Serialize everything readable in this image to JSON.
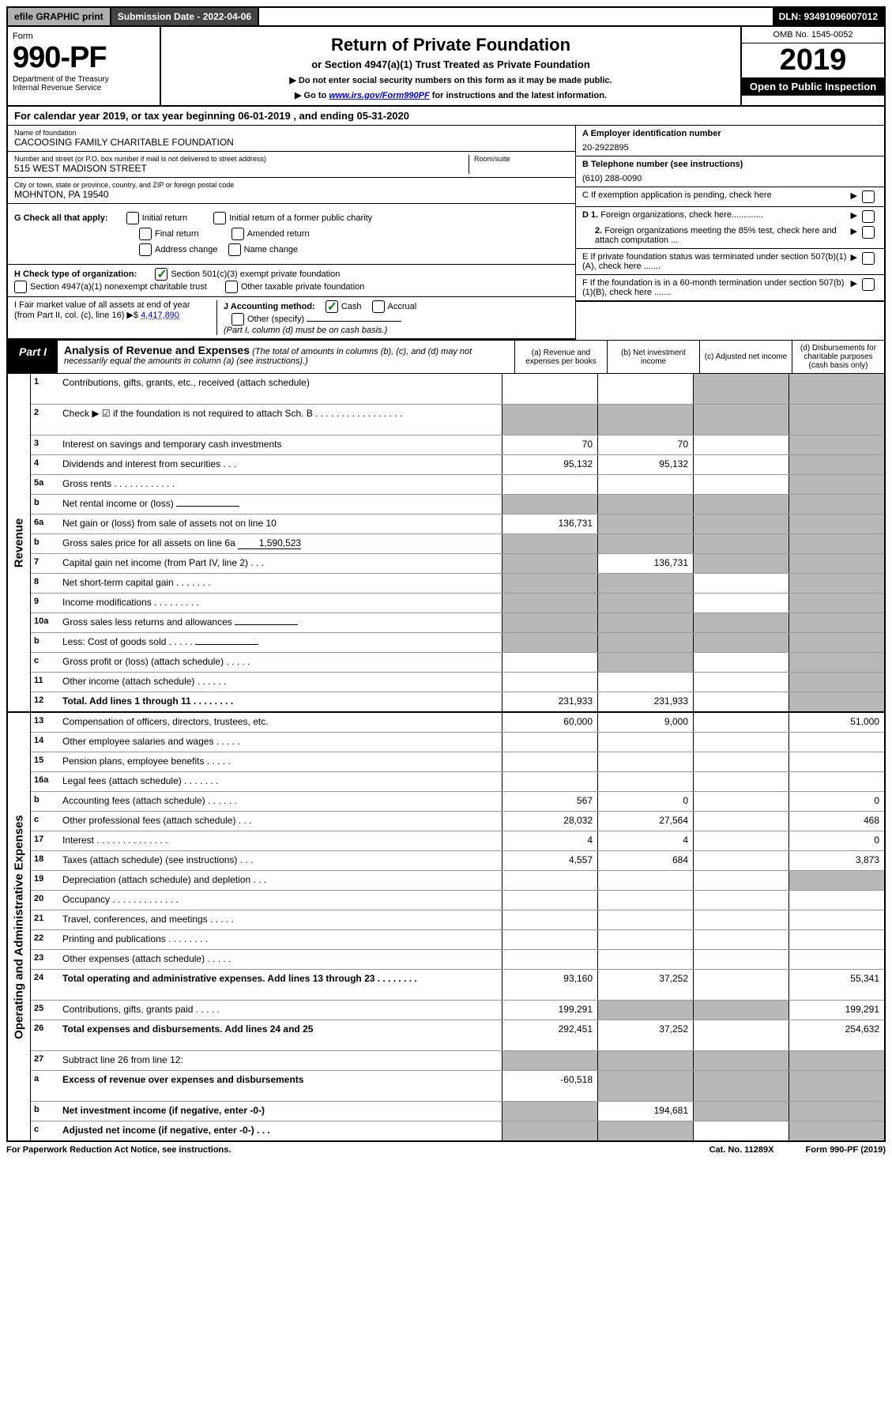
{
  "topbar": {
    "efile": "efile GRAPHIC print",
    "submission_label": "Submission Date - 2022-04-06",
    "dln": "DLN: 93491096007012"
  },
  "header": {
    "form_label": "Form",
    "form_number": "990-PF",
    "dept": "Department of the Treasury\nInternal Revenue Service",
    "title": "Return of Private Foundation",
    "subtitle": "or Section 4947(a)(1) Trust Treated as Private Foundation",
    "instr1": "▶ Do not enter social security numbers on this form as it may be made public.",
    "instr2_pre": "▶ Go to ",
    "instr2_link": "www.irs.gov/Form990PF",
    "instr2_post": " for instructions and the latest information.",
    "omb": "OMB No. 1545-0052",
    "year": "2019",
    "open": "Open to Public Inspection"
  },
  "calyear": "For calendar year 2019, or tax year beginning 06-01-2019           , and ending 05-31-2020",
  "foundation": {
    "name_label": "Name of foundation",
    "name": "CACOOSING FAMILY CHARITABLE FOUNDATION",
    "addr_label": "Number and street (or P.O. box number if mail is not delivered to street address)",
    "addr": "515 WEST MADISON STREET",
    "room_label": "Room/suite",
    "city_label": "City or town, state or province, country, and ZIP or foreign postal code",
    "city": "MOHNTON, PA  19540"
  },
  "right_info": {
    "a_label": "A Employer identification number",
    "a_val": "20-2922895",
    "b_label": "B Telephone number (see instructions)",
    "b_val": "(610) 288-0090",
    "c_label": "C If exemption application is pending, check here",
    "d1_label": "D 1. Foreign organizations, check here.............",
    "d2_label": "2. Foreign organizations meeting the 85% test, check here and attach computation ...",
    "e_label": "E  If private foundation status was terminated under section 507(b)(1)(A), check here .......",
    "f_label": "F  If the foundation is in a 60-month termination under section 507(b)(1)(B), check here ......."
  },
  "g": {
    "label": "G Check all that apply:",
    "opts": [
      "Initial return",
      "Final return",
      "Address change",
      "Initial return of a former public charity",
      "Amended return",
      "Name change"
    ]
  },
  "h": {
    "label": "H Check type of organization:",
    "opt1": "Section 501(c)(3) exempt private foundation",
    "opt2": "Section 4947(a)(1) nonexempt charitable trust",
    "opt3": "Other taxable private foundation"
  },
  "i": {
    "label": "I Fair market value of all assets at end of year (from Part II, col. (c), line 16) ▶$",
    "val": "4,417,890"
  },
  "j": {
    "label": "J Accounting method:",
    "cash": "Cash",
    "accrual": "Accrual",
    "other": "Other (specify)",
    "note": "(Part I, column (d) must be on cash basis.)"
  },
  "part1": {
    "tab": "Part I",
    "title": "Analysis of Revenue and Expenses",
    "title_note": "(The total of amounts in columns (b), (c), and (d) may not necessarily equal the amounts in column (a) (see instructions).)",
    "col_a": "(a)  Revenue and expenses per books",
    "col_b": "(b)  Net investment income",
    "col_c": "(c)  Adjusted net income",
    "col_d": "(d)  Disbursements for charitable purposes (cash basis only)"
  },
  "sections": {
    "revenue": "Revenue",
    "opex": "Operating and Administrative Expenses"
  },
  "rows": [
    {
      "n": "1",
      "desc": "Contributions, gifts, grants, etc., received (attach schedule)",
      "a": "",
      "b": "",
      "c": "s",
      "d": "s",
      "tall": true
    },
    {
      "n": "2",
      "desc": "Check ▶ ☑ if the foundation is not required to attach Sch. B  . . . . . . . . . . . . . . . . .",
      "nocols": true,
      "tall": true
    },
    {
      "n": "3",
      "desc": "Interest on savings and temporary cash investments",
      "a": "70",
      "b": "70",
      "c": "",
      "d": "s"
    },
    {
      "n": "4",
      "desc": "Dividends and interest from securities  . . .",
      "a": "95,132",
      "b": "95,132",
      "c": "",
      "d": "s"
    },
    {
      "n": "5a",
      "desc": "Gross rents  . . . . . . . . . . . .",
      "a": "",
      "b": "",
      "c": "",
      "d": "s"
    },
    {
      "n": "b",
      "desc": "Net rental income or (loss)  ",
      "inline": "",
      "nocols": true
    },
    {
      "n": "6a",
      "desc": "Net gain or (loss) from sale of assets not on line 10",
      "a": "136,731",
      "b": "s",
      "c": "s",
      "d": "s"
    },
    {
      "n": "b",
      "desc": "Gross sales price for all assets on line 6a",
      "inline": "1,590,523",
      "nocols": true
    },
    {
      "n": "7",
      "desc": "Capital gain net income (from Part IV, line 2)  . . .",
      "a": "s",
      "b": "136,731",
      "c": "s",
      "d": "s"
    },
    {
      "n": "8",
      "desc": "Net short-term capital gain  . . . . . . .",
      "a": "s",
      "b": "s",
      "c": "",
      "d": "s"
    },
    {
      "n": "9",
      "desc": "Income modifications  . . . . . . . . .",
      "a": "s",
      "b": "s",
      "c": "",
      "d": "s"
    },
    {
      "n": "10a",
      "desc": "Gross sales less returns and allowances",
      "inline": "",
      "nocols": true
    },
    {
      "n": "b",
      "desc": "Less: Cost of goods sold  . . . . .",
      "inline": "",
      "nocols": true
    },
    {
      "n": "c",
      "desc": "Gross profit or (loss) (attach schedule)  . . . . .",
      "a": "",
      "b": "s",
      "c": "",
      "d": "s"
    },
    {
      "n": "11",
      "desc": "Other income (attach schedule)  . . . . . .",
      "a": "",
      "b": "",
      "c": "",
      "d": "s"
    },
    {
      "n": "12",
      "desc": "Total. Add lines 1 through 11  . . . . . . . .",
      "bold": true,
      "a": "231,933",
      "b": "231,933",
      "c": "",
      "d": "s"
    }
  ],
  "opex_rows": [
    {
      "n": "13",
      "desc": "Compensation of officers, directors, trustees, etc.",
      "a": "60,000",
      "b": "9,000",
      "c": "",
      "d": "51,000"
    },
    {
      "n": "14",
      "desc": "Other employee salaries and wages  . . . . .",
      "a": "",
      "b": "",
      "c": "",
      "d": ""
    },
    {
      "n": "15",
      "desc": "Pension plans, employee benefits  . . . . .",
      "a": "",
      "b": "",
      "c": "",
      "d": ""
    },
    {
      "n": "16a",
      "desc": "Legal fees (attach schedule)  . . . . . . .",
      "a": "",
      "b": "",
      "c": "",
      "d": ""
    },
    {
      "n": "b",
      "desc": "Accounting fees (attach schedule)  . . . . . .",
      "a": "567",
      "b": "0",
      "c": "",
      "d": "0"
    },
    {
      "n": "c",
      "desc": "Other professional fees (attach schedule)  . . .",
      "a": "28,032",
      "b": "27,564",
      "c": "",
      "d": "468"
    },
    {
      "n": "17",
      "desc": "Interest  . . . . . . . . . . . . . .",
      "a": "4",
      "b": "4",
      "c": "",
      "d": "0"
    },
    {
      "n": "18",
      "desc": "Taxes (attach schedule) (see instructions)  . . .",
      "a": "4,557",
      "b": "684",
      "c": "",
      "d": "3,873"
    },
    {
      "n": "19",
      "desc": "Depreciation (attach schedule) and depletion  . . .",
      "a": "",
      "b": "",
      "c": "",
      "d": "s"
    },
    {
      "n": "20",
      "desc": "Occupancy  . . . . . . . . . . . . .",
      "a": "",
      "b": "",
      "c": "",
      "d": ""
    },
    {
      "n": "21",
      "desc": "Travel, conferences, and meetings  . . . . .",
      "a": "",
      "b": "",
      "c": "",
      "d": ""
    },
    {
      "n": "22",
      "desc": "Printing and publications  . . . . . . . .",
      "a": "",
      "b": "",
      "c": "",
      "d": ""
    },
    {
      "n": "23",
      "desc": "Other expenses (attach schedule)  . . . . .",
      "a": "",
      "b": "",
      "c": "",
      "d": ""
    },
    {
      "n": "24",
      "desc": "Total operating and administrative expenses. Add lines 13 through 23  . . . . . . . .",
      "bold": true,
      "a": "93,160",
      "b": "37,252",
      "c": "",
      "d": "55,341",
      "tall": true
    },
    {
      "n": "25",
      "desc": "Contributions, gifts, grants paid  . . . . .",
      "a": "199,291",
      "b": "s",
      "c": "s",
      "d": "199,291"
    },
    {
      "n": "26",
      "desc": "Total expenses and disbursements. Add lines 24 and 25",
      "bold": true,
      "a": "292,451",
      "b": "37,252",
      "c": "",
      "d": "254,632",
      "tall": true
    },
    {
      "n": "27",
      "desc": "Subtract line 26 from line 12:",
      "a": "s",
      "b": "s",
      "c": "s",
      "d": "s"
    },
    {
      "n": "a",
      "desc": "Excess of revenue over expenses and disbursements",
      "bold": true,
      "a": "-60,518",
      "b": "s",
      "c": "s",
      "d": "s",
      "tall": true
    },
    {
      "n": "b",
      "desc": "Net investment income (if negative, enter -0-)",
      "bold": true,
      "a": "s",
      "b": "194,681",
      "c": "s",
      "d": "s"
    },
    {
      "n": "c",
      "desc": "Adjusted net income (if negative, enter -0-)  . . .",
      "bold": true,
      "a": "s",
      "b": "s",
      "c": "",
      "d": "s"
    }
  ],
  "footer": {
    "left": "For Paperwork Reduction Act Notice, see instructions.",
    "mid": "Cat. No. 11289X",
    "right": "Form 990-PF (2019)"
  }
}
